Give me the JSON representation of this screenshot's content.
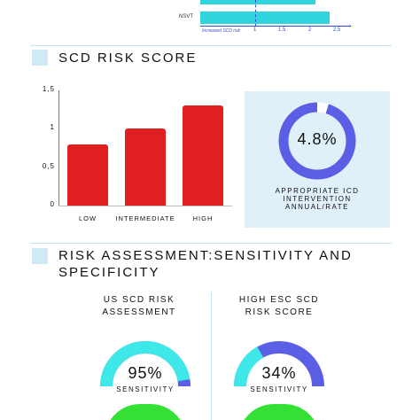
{
  "top_strip": {
    "row_label": "NSVT",
    "axis_caption": "Increased SCD risk",
    "ticks": [
      "1",
      "1.5",
      "2",
      "2.5"
    ],
    "bar_color": "#2fd4dd",
    "ref_color": "#2f4fd8"
  },
  "scd_section": {
    "title": "SCD RISK SCORE",
    "chart_data": {
      "type": "bar",
      "categories": [
        "LOW",
        "INTERMEDIATE",
        "HIGH"
      ],
      "values": [
        0.8,
        1.0,
        1.3
      ],
      "ylim": [
        0,
        1.5
      ],
      "yticks": [
        "0",
        "0,5",
        "1",
        "1,5"
      ],
      "title": "",
      "xlabel": "",
      "ylabel": "",
      "bar_color": "#e02020"
    },
    "icd_card": {
      "percent": 4.8,
      "percent_label": "4.8%",
      "caption_lines": [
        "APPROPRIATE ICD",
        "INTERVENTION",
        "ANNUAL/RATE"
      ],
      "ring_color": "#5b5fe6",
      "card_color": "#dff0f8"
    }
  },
  "risk_section": {
    "title_lines": [
      "RISK ASSESSMENT:SENSITIVITY AND",
      "SPECIFICITY"
    ],
    "gauges": [
      {
        "heading_lines": [
          "US SCD RISK",
          "ASSESSMENT"
        ],
        "value": 95,
        "value_label": "95%",
        "metric": "SENSITIVITY",
        "fill_color": "#3ee8e8",
        "rest_color": "#5b5fe6"
      },
      {
        "heading_lines": [
          "HIGH ESC SCD",
          "RISK SCORE"
        ],
        "value": 34,
        "value_label": "34%",
        "metric": "SENSITIVITY",
        "fill_color": "#3ee8e8",
        "rest_color": "#5b5fe6"
      }
    ],
    "bottom_color": "#33e033"
  }
}
